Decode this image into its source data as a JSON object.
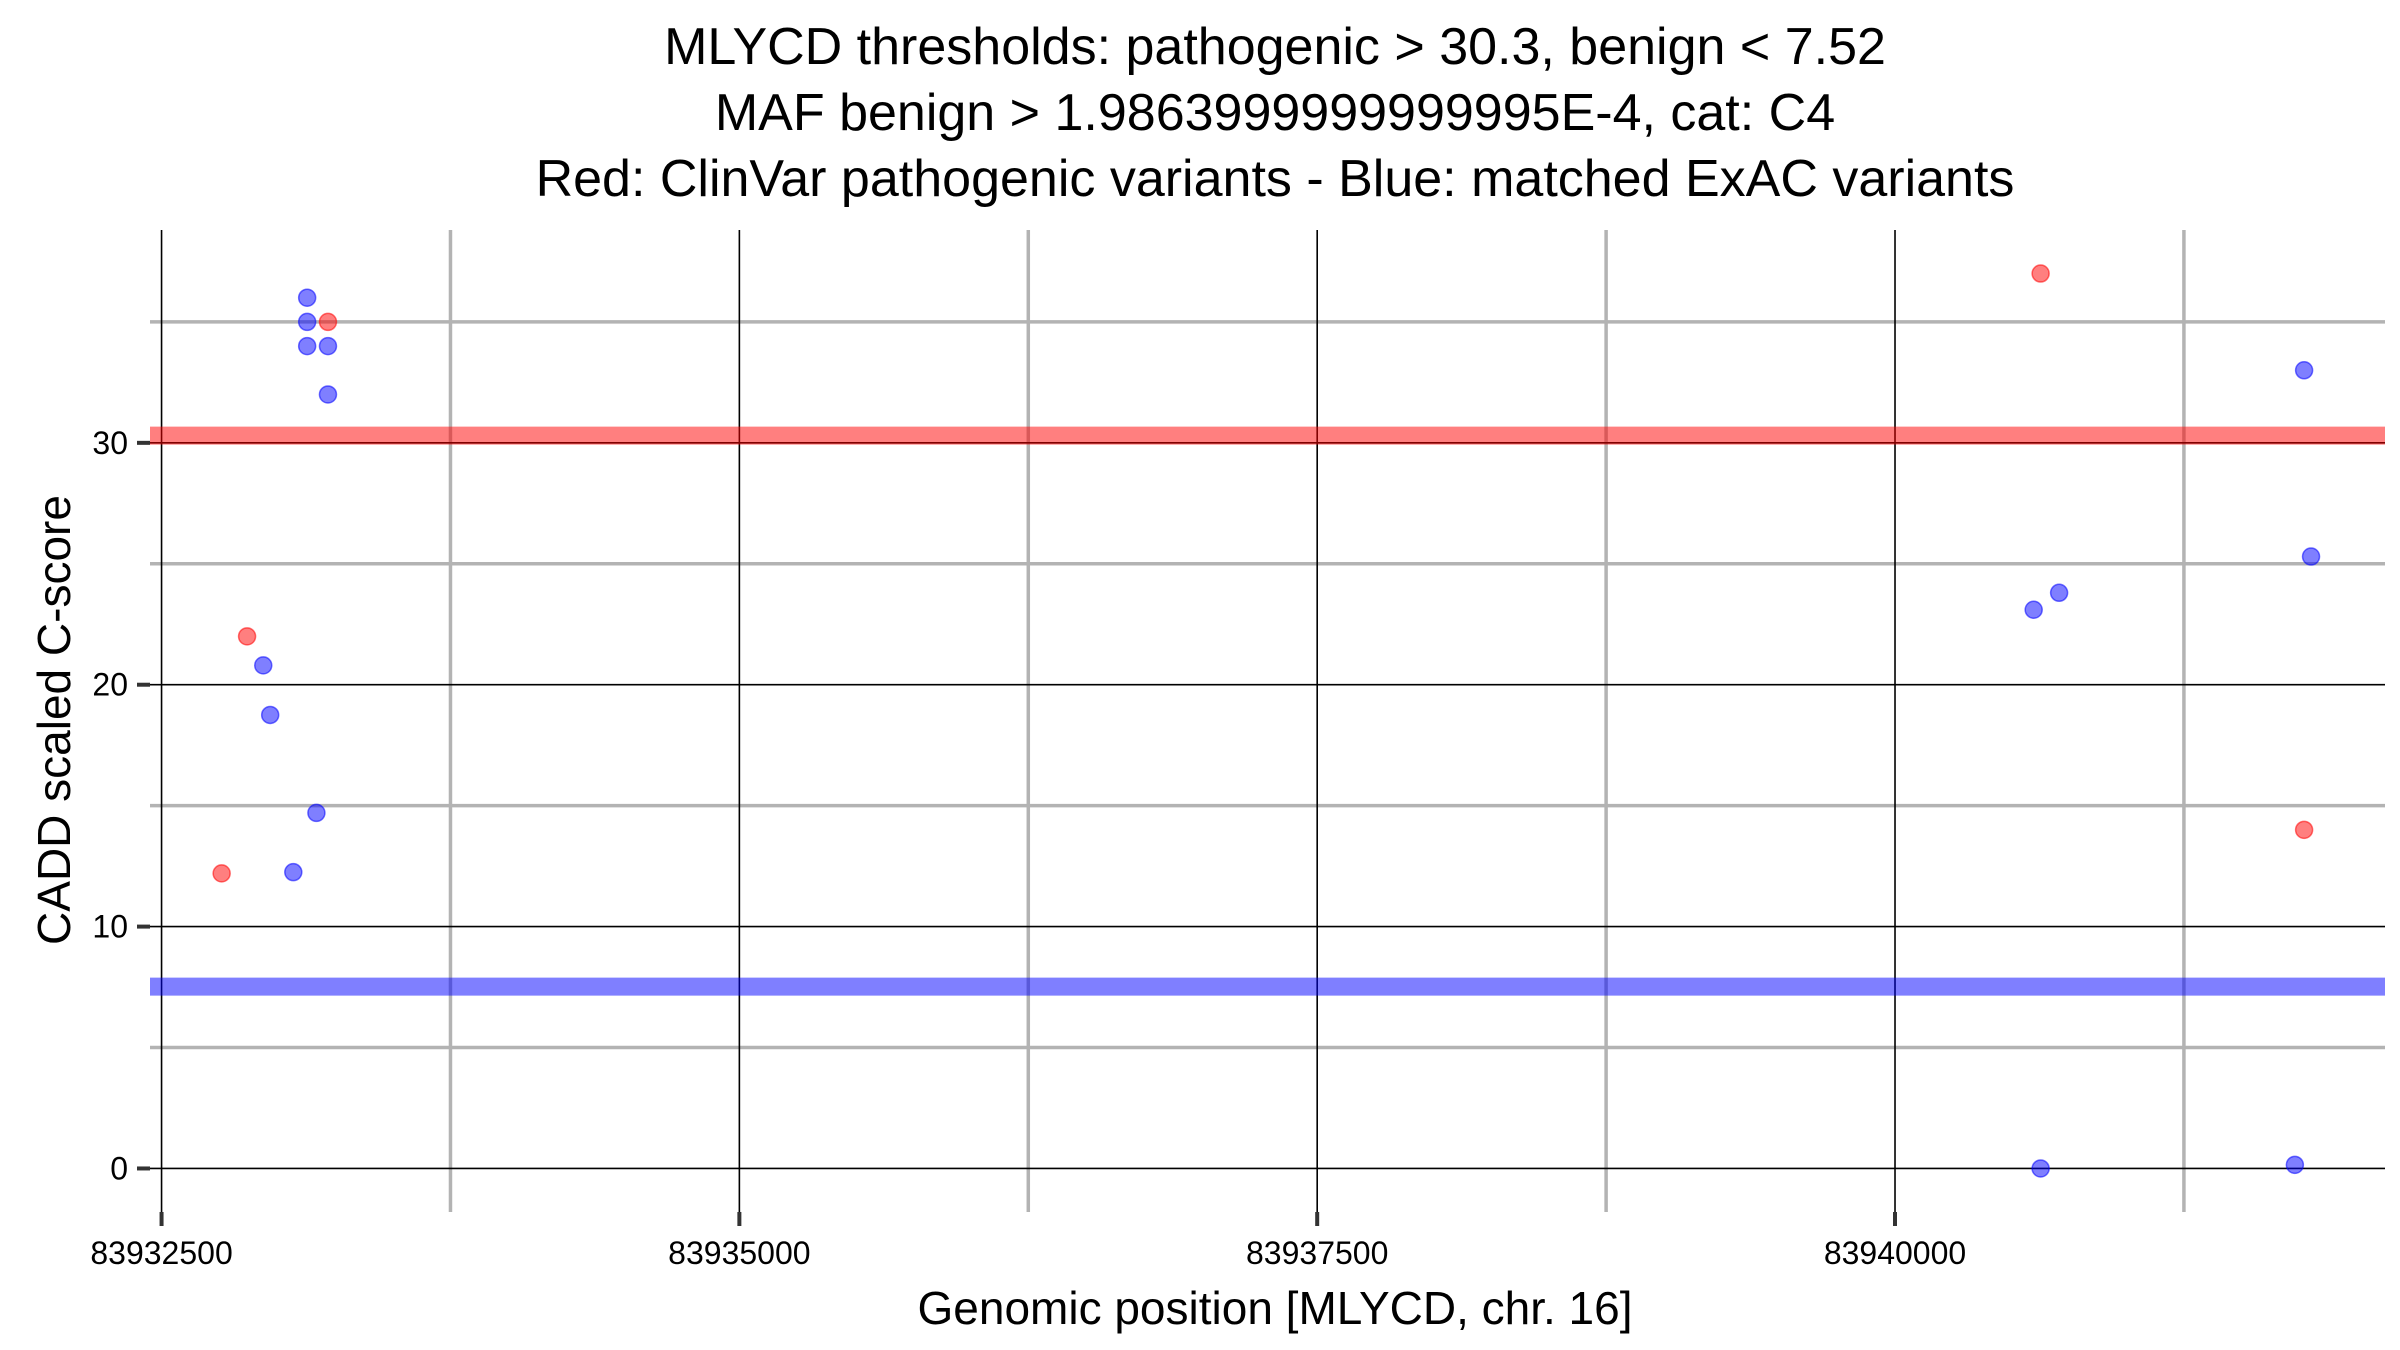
{
  "chart_data": {
    "type": "scatter",
    "title": [
      "MLYCD thresholds: pathogenic > 30.3, benign < 7.52",
      "MAF benign > 1.9863999999999995E-4, cat: C4",
      "Red: ClinVar pathogenic variants - Blue: matched ExAC variants"
    ],
    "xlabel": "Genomic position [MLYCD, chr. 16]",
    "ylabel": "CADD scaled C-score",
    "xlim": [
      83932450,
      83942120
    ],
    "ylim": [
      -1.8,
      38.8
    ],
    "xticks": [
      {
        "value": 83932500,
        "label": "83932500"
      },
      {
        "value": 83935000,
        "label": "83935000"
      },
      {
        "value": 83937500,
        "label": "83937500"
      },
      {
        "value": 83940000,
        "label": "83940000"
      }
    ],
    "yticks": [
      {
        "value": 0,
        "label": "0"
      },
      {
        "value": 10,
        "label": "10"
      },
      {
        "value": 20,
        "label": "20"
      },
      {
        "value": 30,
        "label": "30"
      }
    ],
    "x_minor_gridlines": [
      83933750,
      83936250,
      83938750,
      83941250
    ],
    "y_minor_gridlines": [
      5,
      15,
      25,
      35
    ],
    "thresholds": [
      {
        "name": "pathogenic",
        "value": 30.3,
        "color": "#ff0000"
      },
      {
        "name": "benign",
        "value": 7.52,
        "color": "#0000ff"
      }
    ],
    "series": [
      {
        "color": "#ff0000",
        "points": [
          {
            "x": 83932760,
            "y": 12.2
          },
          {
            "x": 83932870,
            "y": 22.0
          },
          {
            "x": 83933220,
            "y": 35.0
          },
          {
            "x": 83940630,
            "y": 37.0
          },
          {
            "x": 83941770,
            "y": 14.0
          }
        ]
      },
      {
        "color": "#0000ff",
        "points": [
          {
            "x": 83932940,
            "y": 20.8
          },
          {
            "x": 83932970,
            "y": 18.75
          },
          {
            "x": 83933070,
            "y": 12.25
          },
          {
            "x": 83933130,
            "y": 36.0
          },
          {
            "x": 83933130,
            "y": 35.0
          },
          {
            "x": 83933130,
            "y": 34.0
          },
          {
            "x": 83933170,
            "y": 14.7
          },
          {
            "x": 83933220,
            "y": 34.0
          },
          {
            "x": 83933220,
            "y": 32.0
          },
          {
            "x": 83940600,
            "y": 23.1
          },
          {
            "x": 83940630,
            "y": 0.0
          },
          {
            "x": 83940710,
            "y": 23.8
          },
          {
            "x": 83941730,
            "y": 0.15
          },
          {
            "x": 83941770,
            "y": 33.0
          },
          {
            "x": 83941800,
            "y": 25.3
          }
        ]
      }
    ]
  }
}
